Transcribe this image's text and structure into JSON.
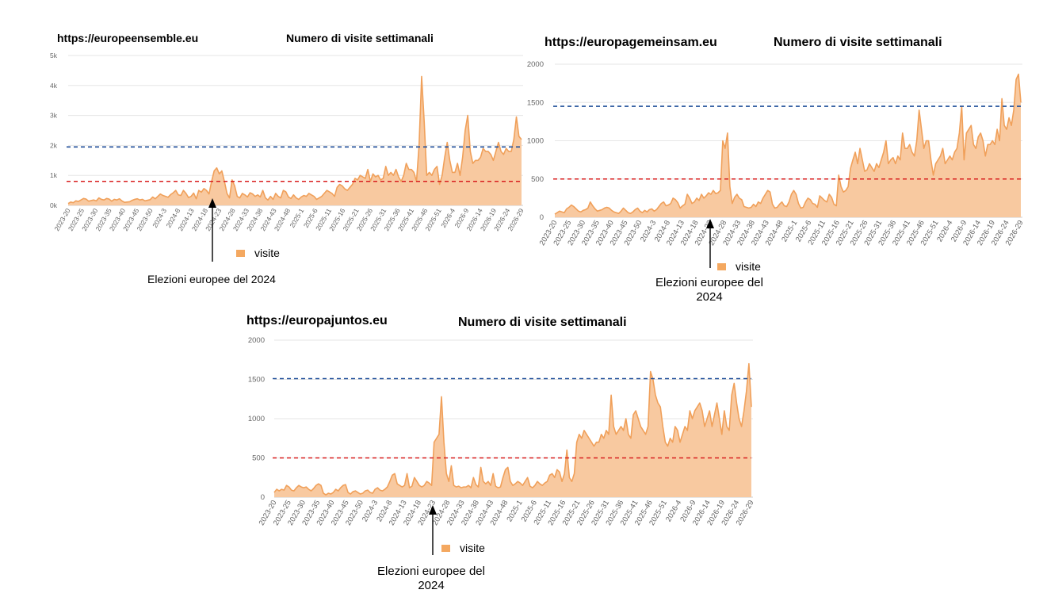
{
  "colors": {
    "area_fill": "#f8c9a0",
    "area_line": "#f0a05a",
    "legend_swatch": "#f4a860",
    "blue_dash": "#1f4e99",
    "red_dash": "#d81e1e",
    "grid": "#e6e6e6",
    "tick_text": "#666666"
  },
  "annotation_text": "Elezioni europee del 2024",
  "chart_data": [
    {
      "type": "area",
      "site": "https://europeensemble.eu",
      "title": "Numero di visite settimanali",
      "legend": "visite",
      "series": [
        {
          "name": "visite",
          "values": [
            60,
            110,
            90,
            150,
            130,
            180,
            230,
            210,
            140,
            160,
            180,
            150,
            250,
            200,
            180,
            230,
            210,
            140,
            200,
            180,
            220,
            150,
            100,
            110,
            120,
            170,
            200,
            220,
            180,
            200,
            150,
            170,
            190,
            280,
            220,
            300,
            380,
            330,
            300,
            270,
            360,
            420,
            500,
            350,
            330,
            500,
            400,
            260,
            300,
            410,
            220,
            500,
            440,
            560,
            500,
            380,
            800,
            1150,
            1250,
            1050,
            1150,
            800,
            400,
            250,
            850,
            650,
            300,
            250,
            400,
            350,
            280,
            420,
            380,
            300,
            350,
            280,
            500,
            250,
            180,
            300,
            200,
            400,
            300,
            250,
            500,
            450,
            280,
            230,
            350,
            250,
            200,
            280,
            330,
            300,
            400,
            350,
            300,
            200,
            250,
            300,
            400,
            500,
            450,
            400,
            300,
            600,
            700,
            650,
            550,
            500,
            600,
            700,
            900,
            850,
            1000,
            950,
            900,
            1200,
            800,
            1050,
            950,
            1000,
            850,
            900,
            1300,
            1000,
            1100,
            1000,
            1200,
            950,
            800,
            1000,
            1400,
            1200,
            1200,
            1100,
            800,
            2000,
            4300,
            2800,
            1000,
            1100,
            1000,
            1200,
            1300,
            700,
            1000,
            1600,
            2100,
            1500,
            1100,
            1100,
            1400,
            1000,
            1600,
            2500,
            3000,
            1800,
            1400,
            1500,
            1500,
            1600,
            1900,
            1800,
            1800,
            1700,
            1500,
            1800,
            2100,
            1800,
            1700,
            1900,
            1800,
            1800,
            2200,
            2950,
            2300,
            2200
          ]
        }
      ],
      "x_ticks": [
        "2023-20",
        "2023-25",
        "2023-30",
        "2023-35",
        "2023-40",
        "2023-45",
        "2023-50",
        "2024-3",
        "2024-8",
        "2024-13",
        "2024-18",
        "2024-23",
        "2024-28",
        "2024-33",
        "2024-38",
        "2024-43",
        "2024-48",
        "2025-1",
        "2025-6",
        "2025-11",
        "2025-16",
        "2025-21",
        "2025-26",
        "2025-31",
        "2025-36",
        "2025-41",
        "2025-46",
        "2025-51",
        "2026-4",
        "2026-9",
        "2026-14",
        "2026-19",
        "2026-24",
        "2026-29"
      ],
      "y_ticks": [
        "0k",
        "1k",
        "2k",
        "3k",
        "4k",
        "5k"
      ],
      "ylim": [
        0,
        5000
      ],
      "reference_lines": [
        {
          "color": "blue",
          "value": 1950
        },
        {
          "color": "red",
          "value": 800
        }
      ],
      "annotation": {
        "text": "Elezioni europee del 2024",
        "x_index": 57
      }
    },
    {
      "type": "area",
      "site": "https://europagemeinsam.eu",
      "title": "Numero di visite settimanali",
      "legend": "visite",
      "series": [
        {
          "name": "visite",
          "values": [
            40,
            60,
            80,
            70,
            60,
            110,
            130,
            160,
            140,
            110,
            80,
            70,
            90,
            100,
            120,
            200,
            150,
            110,
            80,
            90,
            100,
            120,
            130,
            120,
            90,
            70,
            60,
            50,
            80,
            120,
            90,
            60,
            50,
            70,
            100,
            120,
            80,
            60,
            90,
            70,
            100,
            110,
            80,
            100,
            140,
            180,
            200,
            150,
            160,
            180,
            250,
            230,
            190,
            120,
            150,
            170,
            300,
            250,
            180,
            200,
            250,
            220,
            300,
            250,
            280,
            320,
            300,
            350,
            310,
            320,
            350,
            1000,
            900,
            1100,
            400,
            180,
            260,
            300,
            250,
            230,
            140,
            130,
            120,
            130,
            170,
            140,
            200,
            180,
            250,
            300,
            350,
            330,
            170,
            120,
            130,
            170,
            200,
            150,
            140,
            200,
            300,
            350,
            300,
            180,
            120,
            130,
            200,
            250,
            230,
            180,
            170,
            130,
            280,
            250,
            220,
            200,
            300,
            260,
            170,
            150,
            550,
            400,
            330,
            350,
            400,
            640,
            750,
            850,
            700,
            900,
            750,
            600,
            620,
            700,
            650,
            600,
            700,
            650,
            750,
            850,
            1000,
            700,
            750,
            780,
            700,
            800,
            750,
            1100,
            900,
            900,
            950,
            850,
            800,
            1000,
            1400,
            1150,
            900,
            1000,
            1000,
            750,
            550,
            700,
            750,
            800,
            900,
            700,
            750,
            800,
            750,
            850,
            900,
            1100,
            1450,
            750,
            1100,
            1150,
            1200,
            950,
            900,
            1050,
            1100,
            1000,
            800,
            950,
            950,
            1000,
            950,
            1150,
            1000,
            1550,
            1200,
            1150,
            1300,
            1200,
            1400,
            1800,
            1870,
            1500
          ]
        }
      ],
      "x_ticks": [
        "2023-20",
        "2023-25",
        "2023-30",
        "2023-35",
        "2023-40",
        "2023-45",
        "2023-50",
        "2024-3",
        "2024-8",
        "2024-13",
        "2024-18",
        "2024-23",
        "2024-28",
        "2024-33",
        "2024-38",
        "2024-43",
        "2024-48",
        "2025-1",
        "2025-6",
        "2025-11",
        "2025-16",
        "2025-21",
        "2025-26",
        "2025-31",
        "2025-36",
        "2025-41",
        "2025-46",
        "2025-51",
        "2026-4",
        "2026-9",
        "2026-14",
        "2026-19",
        "2026-24",
        "2026-29"
      ],
      "y_ticks": [
        "0",
        "500",
        "1000",
        "1500",
        "2000"
      ],
      "ylim": [
        0,
        2000
      ],
      "reference_lines": [
        {
          "color": "blue",
          "value": 1450
        },
        {
          "color": "red",
          "value": 500
        }
      ],
      "annotation": {
        "text": "Elezioni europee del 2024",
        "x_index": 59
      }
    },
    {
      "type": "area",
      "site": "https://europajuntos.eu",
      "title": "Numero di visite settimanali",
      "legend": "visite",
      "series": [
        {
          "name": "visite",
          "values": [
            60,
            100,
            80,
            100,
            90,
            150,
            130,
            90,
            80,
            120,
            150,
            130,
            120,
            130,
            100,
            80,
            110,
            150,
            170,
            150,
            50,
            30,
            50,
            40,
            60,
            100,
            80,
            120,
            150,
            160,
            60,
            40,
            70,
            80,
            60,
            40,
            50,
            80,
            90,
            60,
            50,
            100,
            120,
            90,
            80,
            100,
            130,
            200,
            280,
            300,
            170,
            150,
            130,
            150,
            300,
            120,
            140,
            250,
            200,
            150,
            130,
            150,
            200,
            180,
            150,
            700,
            750,
            800,
            1280,
            700,
            300,
            200,
            400,
            150,
            130,
            140,
            120,
            130,
            130,
            150,
            120,
            250,
            160,
            130,
            380,
            200,
            170,
            200,
            150,
            300,
            140,
            120,
            130,
            250,
            350,
            380,
            200,
            150,
            170,
            200,
            180,
            150,
            200,
            250,
            140,
            120,
            150,
            200,
            170,
            150,
            180,
            200,
            280,
            300,
            250,
            350,
            320,
            200,
            300,
            600,
            250,
            200,
            300,
            700,
            800,
            750,
            850,
            800,
            750,
            700,
            650,
            700,
            700,
            800,
            750,
            850,
            800,
            1300,
            900,
            800,
            850,
            900,
            850,
            1000,
            800,
            750,
            1050,
            1100,
            1000,
            900,
            850,
            800,
            900,
            1600,
            1500,
            1300,
            1200,
            1150,
            900,
            700,
            650,
            750,
            700,
            900,
            850,
            700,
            800,
            900,
            850,
            1100,
            1000,
            1100,
            1150,
            1200,
            1100,
            900,
            1000,
            1100,
            900,
            1050,
            1200,
            1000,
            800,
            1100,
            900,
            850,
            1300,
            1450,
            1200,
            1000,
            900,
            1100,
            1350,
            1700,
            1150
          ]
        }
      ],
      "x_ticks": [
        "2023-20",
        "2023-25",
        "2023-30",
        "2023-35",
        "2023-40",
        "2023-45",
        "2023-50",
        "2024-3",
        "2024-8",
        "2024-13",
        "2024-18",
        "2024-23",
        "2024-28",
        "2024-33",
        "2024-38",
        "2024-43",
        "2024-48",
        "2025-1",
        "2025-6",
        "2025-11",
        "2025-16",
        "2025-21",
        "2025-26",
        "2025-31",
        "2025-36",
        "2025-41",
        "2025-46",
        "2025-51",
        "2026-4",
        "2026-9",
        "2026-14",
        "2026-19",
        "2026-24",
        "2026-29"
      ],
      "y_ticks": [
        "0",
        "500",
        "1000",
        "1500",
        "2000"
      ],
      "ylim": [
        0,
        2000
      ],
      "reference_lines": [
        {
          "color": "blue",
          "value": 1510
        },
        {
          "color": "red",
          "value": 500
        }
      ],
      "annotation": {
        "text": "Elezioni europee del 2024",
        "x_index": 66
      }
    }
  ]
}
